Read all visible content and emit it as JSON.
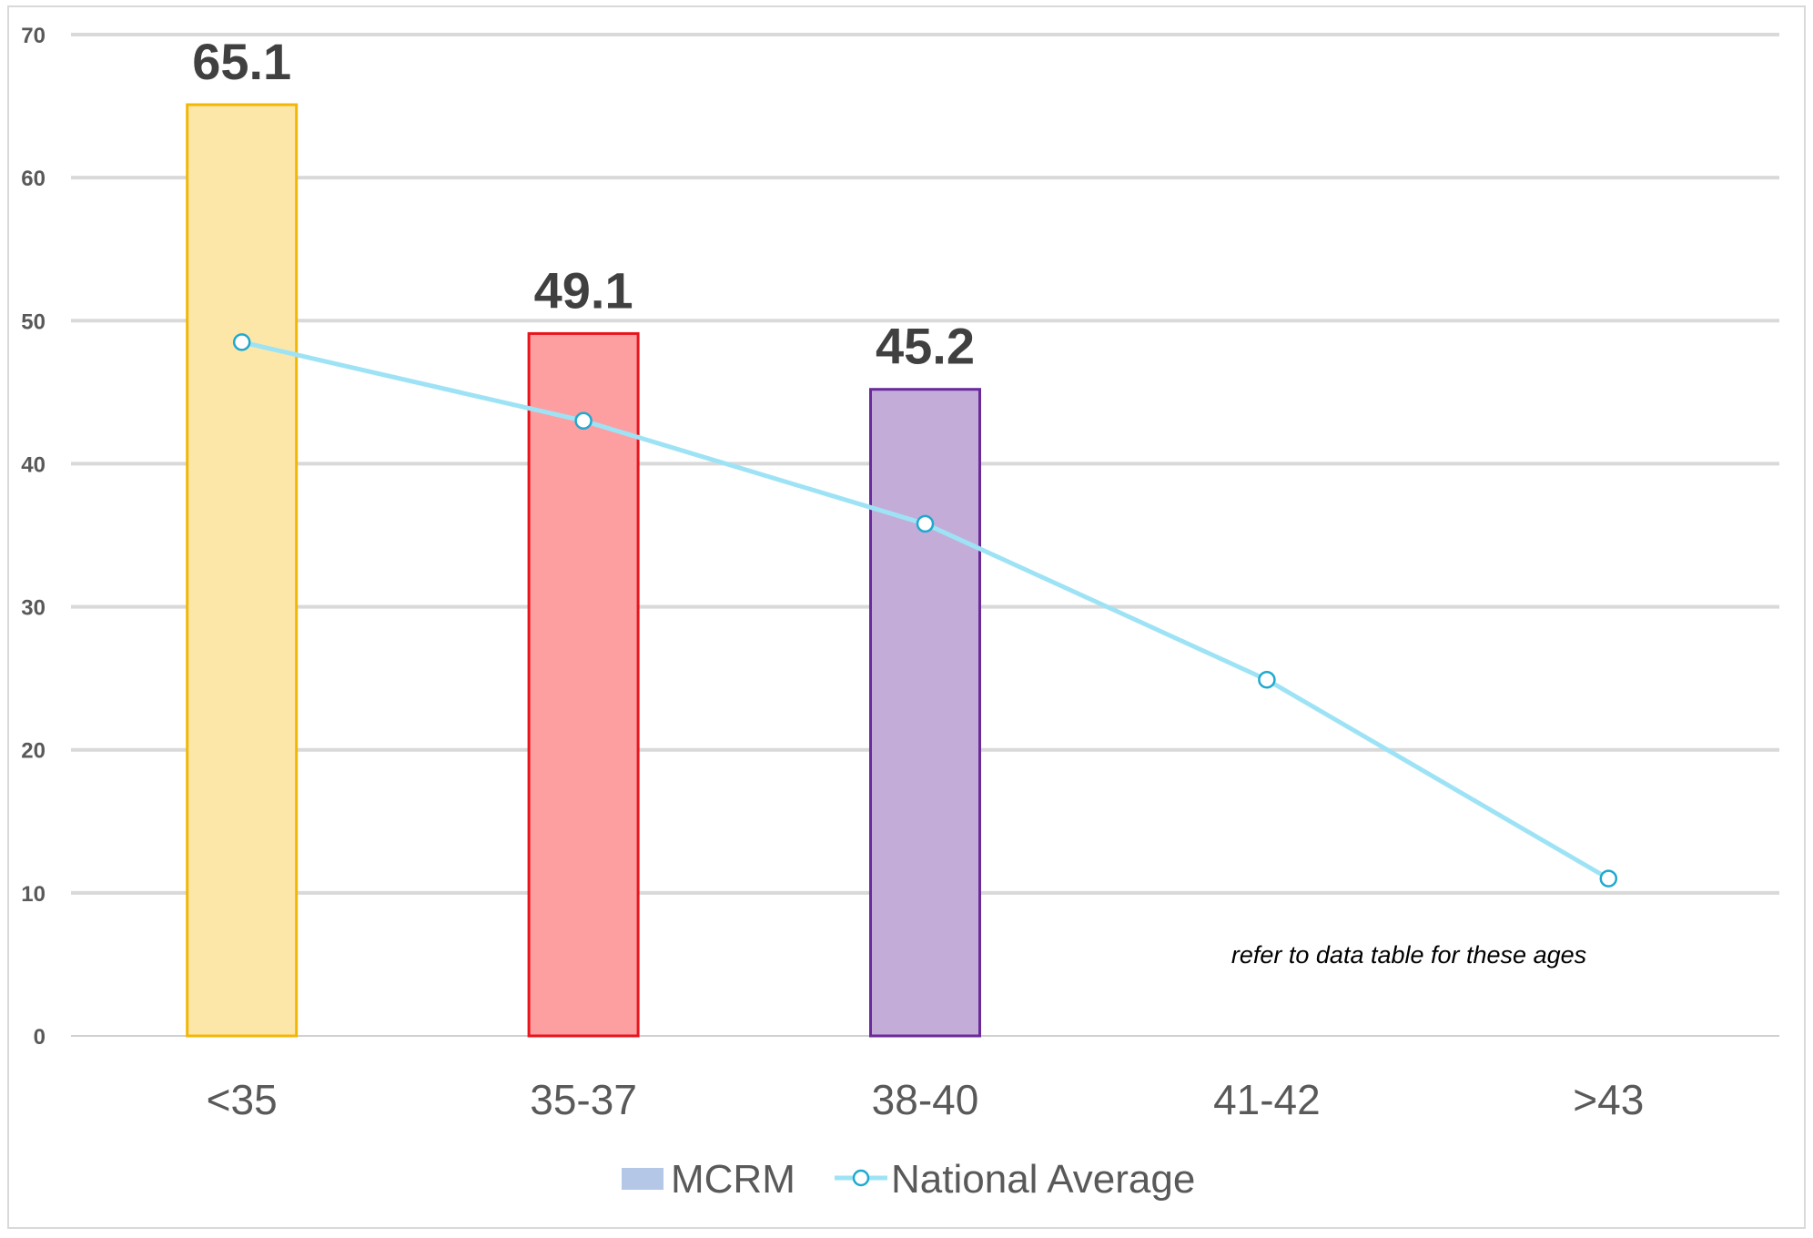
{
  "chart_data": {
    "type": "bar",
    "title": "",
    "xlabel": "",
    "ylabel": "",
    "ylim": [
      0,
      70
    ],
    "yticks": [
      0,
      10,
      20,
      30,
      40,
      50,
      60,
      70
    ],
    "grid": true,
    "legend_position": "bottom",
    "categories": [
      "<35",
      "35-37",
      "38-40",
      "41-42",
      ">43"
    ],
    "series": [
      {
        "name": "MCRM",
        "type": "bar",
        "values": [
          65.1,
          49.1,
          45.2,
          null,
          null
        ],
        "data_labels": [
          "65.1",
          "49.1",
          "45.2",
          "",
          ""
        ],
        "fill_colors": [
          "#fde7a8",
          "#fd9ea1",
          "#c4acd8",
          "",
          ""
        ],
        "border_colors": [
          "#f2b705",
          "#e8141c",
          "#6a2a9a",
          "",
          ""
        ],
        "legend_color": "#b4c7e7"
      },
      {
        "name": "National Average",
        "type": "line",
        "values": [
          48.5,
          43.0,
          35.8,
          24.9,
          11.0
        ],
        "color": "#9ee3f5",
        "marker_color": "#1fa9cf"
      }
    ],
    "annotations": [
      "refer to data table for these ages"
    ]
  }
}
